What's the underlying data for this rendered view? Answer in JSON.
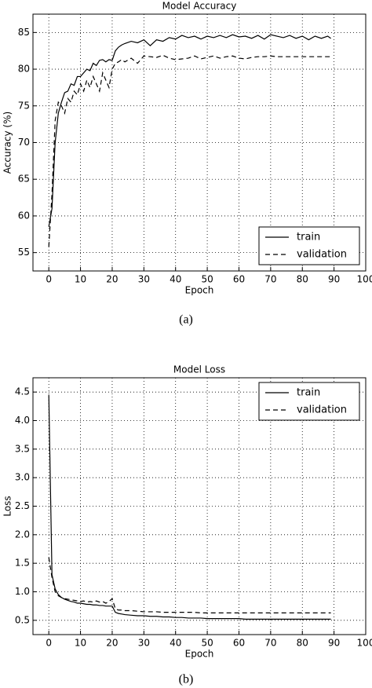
{
  "chart_data": [
    {
      "type": "line",
      "title": "Model Accuracy",
      "x_label": "Epoch",
      "y_label": "Accuracy (%)",
      "caption": "(a)",
      "x": [
        0,
        1,
        2,
        3,
        4,
        5,
        6,
        7,
        8,
        9,
        10,
        11,
        12,
        13,
        14,
        15,
        16,
        17,
        18,
        19,
        20,
        21,
        22,
        23,
        24,
        26,
        28,
        30,
        32,
        34,
        36,
        38,
        40,
        42,
        44,
        46,
        48,
        50,
        52,
        54,
        56,
        58,
        60,
        62,
        64,
        66,
        68,
        70,
        72,
        74,
        76,
        78,
        80,
        82,
        84,
        86,
        88,
        89
      ],
      "series": [
        {
          "name": "train",
          "color": "#000000",
          "linestyle": "solid",
          "values": [
            58.5,
            61,
            70,
            74,
            75.5,
            76.8,
            77,
            78,
            77.8,
            79,
            79,
            79.5,
            80,
            79.8,
            80.8,
            80.5,
            81.2,
            81.3,
            81,
            81.3,
            81.2,
            82.5,
            83,
            83.3,
            83.5,
            83.8,
            83.6,
            84,
            83.2,
            84,
            83.8,
            84.3,
            84.1,
            84.6,
            84.3,
            84.5,
            84.1,
            84.5,
            84.3,
            84.6,
            84.3,
            84.7,
            84.4,
            84.5,
            84.2,
            84.6,
            84.1,
            84.7,
            84.5,
            84.3,
            84.6,
            84.2,
            84.5,
            84,
            84.5,
            84.2,
            84.5,
            84.2
          ]
        },
        {
          "name": "validation",
          "color": "#000000",
          "linestyle": "dashed",
          "values": [
            55.8,
            63,
            73,
            75.5,
            75,
            74,
            76,
            75.5,
            77,
            76.5,
            78,
            77,
            78.5,
            77.5,
            79,
            78,
            77,
            79.5,
            78.5,
            77.5,
            80,
            80.8,
            81,
            81.3,
            81,
            81.5,
            80.8,
            81.8,
            81.7,
            81.6,
            81.9,
            81.5,
            81.3,
            81.4,
            81.5,
            81.8,
            81.4,
            81.6,
            81.8,
            81.5,
            81.7,
            81.8,
            81.5,
            81.4,
            81.6,
            81.7,
            81.7,
            81.8,
            81.7,
            81.7,
            81.7,
            81.7,
            81.7,
            81.7,
            81.7,
            81.7,
            81.7,
            81.7
          ]
        }
      ],
      "xlim": [
        -5,
        100
      ],
      "xticks": [
        0,
        10,
        20,
        30,
        40,
        50,
        60,
        70,
        80,
        90,
        100
      ],
      "ylim": [
        52.5,
        87.5
      ],
      "yticks": [
        55,
        60,
        65,
        70,
        75,
        80,
        85
      ],
      "grid": true,
      "legend": "lower right"
    },
    {
      "type": "line",
      "title": "Model Loss",
      "x_label": "Epoch",
      "y_label": "Loss",
      "caption": "(b)",
      "x": [
        0,
        1,
        2,
        3,
        4,
        5,
        6,
        7,
        8,
        9,
        10,
        11,
        12,
        13,
        14,
        15,
        16,
        17,
        18,
        19,
        20,
        21,
        22,
        23,
        24,
        26,
        28,
        30,
        32,
        34,
        36,
        38,
        40,
        42,
        44,
        46,
        48,
        50,
        52,
        54,
        56,
        58,
        60,
        62,
        64,
        66,
        68,
        70,
        72,
        74,
        76,
        78,
        80,
        82,
        84,
        86,
        88,
        89
      ],
      "series": [
        {
          "name": "train",
          "color": "#000000",
          "linestyle": "solid",
          "values": [
            4.45,
            1.3,
            1.05,
            0.95,
            0.9,
            0.87,
            0.85,
            0.83,
            0.82,
            0.8,
            0.8,
            0.79,
            0.78,
            0.78,
            0.77,
            0.77,
            0.76,
            0.76,
            0.75,
            0.75,
            0.75,
            0.64,
            0.62,
            0.61,
            0.6,
            0.59,
            0.58,
            0.58,
            0.57,
            0.57,
            0.56,
            0.56,
            0.55,
            0.55,
            0.54,
            0.54,
            0.54,
            0.53,
            0.53,
            0.53,
            0.53,
            0.53,
            0.53,
            0.52,
            0.52,
            0.52,
            0.52,
            0.52,
            0.52,
            0.52,
            0.52,
            0.52,
            0.52,
            0.52,
            0.52,
            0.52,
            0.52,
            0.52
          ]
        },
        {
          "name": "validation",
          "color": "#000000",
          "linestyle": "dashed",
          "values": [
            1.6,
            1.25,
            1.0,
            0.93,
            0.9,
            0.88,
            0.87,
            0.86,
            0.85,
            0.84,
            0.83,
            0.84,
            0.82,
            0.83,
            0.82,
            0.84,
            0.82,
            0.83,
            0.8,
            0.83,
            0.88,
            0.7,
            0.68,
            0.68,
            0.67,
            0.67,
            0.66,
            0.65,
            0.65,
            0.65,
            0.64,
            0.64,
            0.64,
            0.64,
            0.64,
            0.64,
            0.63,
            0.63,
            0.63,
            0.63,
            0.63,
            0.63,
            0.63,
            0.63,
            0.63,
            0.63,
            0.63,
            0.63,
            0.63,
            0.63,
            0.63,
            0.63,
            0.63,
            0.63,
            0.63,
            0.63,
            0.63,
            0.63
          ]
        }
      ],
      "xlim": [
        -5,
        100
      ],
      "xticks": [
        0,
        10,
        20,
        30,
        40,
        50,
        60,
        70,
        80,
        90,
        100
      ],
      "ylim": [
        0.25,
        4.75
      ],
      "yticks": [
        0.5,
        {
          "value": 1,
          "label": "1.0"
        },
        1.5,
        {
          "value": 2,
          "label": "2.0"
        },
        2.5,
        {
          "value": 3,
          "label": "3.0"
        },
        3.5,
        {
          "value": 4,
          "label": "4.0"
        },
        4.5
      ],
      "grid": true,
      "legend": "upper right"
    }
  ]
}
